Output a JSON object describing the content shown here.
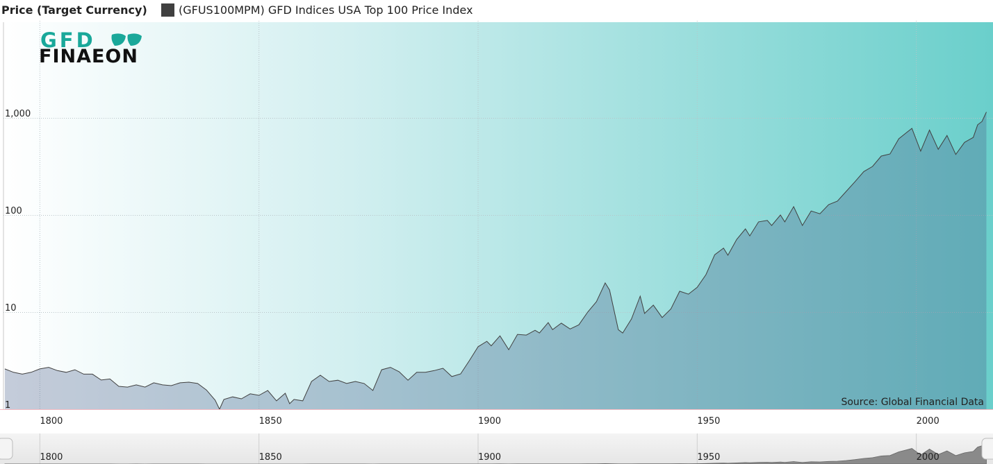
{
  "chart_data": {
    "type": "area",
    "title": "Price (Target Currency)",
    "source": "Source: Global Financial Data",
    "logo": {
      "top": "GFD",
      "bottom": "FINAEON"
    },
    "log_scale": true,
    "grid": true,
    "xlim": [
      1791.7,
      2017.5
    ],
    "ylim": [
      1,
      10000
    ],
    "xticks": [
      1800,
      1850,
      1900,
      1950,
      2000
    ],
    "yticks": [
      1,
      10,
      100,
      {
        "value": 1000,
        "label": "1,000"
      }
    ],
    "x": [
      1792,
      1794,
      1796,
      1798,
      1800,
      1802,
      1804,
      1806,
      1808,
      1810,
      1812,
      1814,
      1816,
      1818,
      1820,
      1822,
      1824,
      1826,
      1828,
      1830,
      1832,
      1834,
      1836,
      1838,
      1840,
      1841,
      1842,
      1844,
      1846,
      1848,
      1850,
      1852,
      1854,
      1856,
      1857,
      1858,
      1860,
      1862,
      1864,
      1866,
      1868,
      1870,
      1872,
      1874,
      1876,
      1878,
      1880,
      1882,
      1884,
      1886,
      1888,
      1890,
      1892,
      1894,
      1896,
      1898,
      1900,
      1902,
      1903,
      1905,
      1907,
      1909,
      1911,
      1913,
      1914,
      1916,
      1917,
      1919,
      1921,
      1923,
      1925,
      1927,
      1929,
      1930,
      1932,
      1933,
      1935,
      1937,
      1938,
      1940,
      1942,
      1944,
      1946,
      1948,
      1950,
      1952,
      1954,
      1956,
      1957,
      1959,
      1961,
      1962,
      1964,
      1966,
      1967,
      1969,
      1970,
      1972,
      1974,
      1976,
      1978,
      1980,
      1982,
      1984,
      1986,
      1988,
      1990,
      1992,
      1994,
      1996,
      1998,
      1999,
      2001,
      2003,
      2005,
      2007,
      2009,
      2011,
      2013,
      2014,
      2015,
      2016
    ],
    "series": [
      {
        "name": "(GFUS100MPM) GFD Indices USA Top 100 Price Index",
        "color": "#404040",
        "values": [
          2.6,
          2.4,
          2.3,
          2.4,
          2.6,
          2.7,
          2.5,
          2.4,
          2.55,
          2.3,
          2.3,
          2.0,
          2.05,
          1.72,
          1.69,
          1.78,
          1.69,
          1.87,
          1.78,
          1.75,
          1.87,
          1.9,
          1.84,
          1.58,
          1.24,
          1.0,
          1.26,
          1.34,
          1.28,
          1.44,
          1.39,
          1.56,
          1.22,
          1.46,
          1.14,
          1.26,
          1.22,
          1.93,
          2.24,
          1.93,
          1.99,
          1.84,
          1.93,
          1.84,
          1.56,
          2.55,
          2.7,
          2.43,
          1.99,
          2.4,
          2.4,
          2.5,
          2.64,
          2.17,
          2.31,
          3.16,
          4.4,
          5.0,
          4.5,
          5.7,
          4.1,
          5.9,
          5.8,
          6.5,
          6.1,
          7.8,
          6.6,
          7.7,
          6.7,
          7.4,
          10,
          12.8,
          20,
          16.9,
          6.6,
          6.1,
          8.5,
          14.6,
          9.7,
          11.8,
          8.8,
          10.8,
          16.4,
          15.3,
          18,
          24.3,
          39,
          45.6,
          38.5,
          56,
          72,
          61,
          85,
          88,
          78,
          100,
          85,
          122,
          78,
          110,
          103,
          128,
          139,
          175,
          220,
          280,
          316,
          405,
          425,
          610,
          720,
          780,
          455,
          750,
          475,
          660,
          420,
          560,
          630,
          850,
          920,
          1150
        ]
      }
    ]
  }
}
